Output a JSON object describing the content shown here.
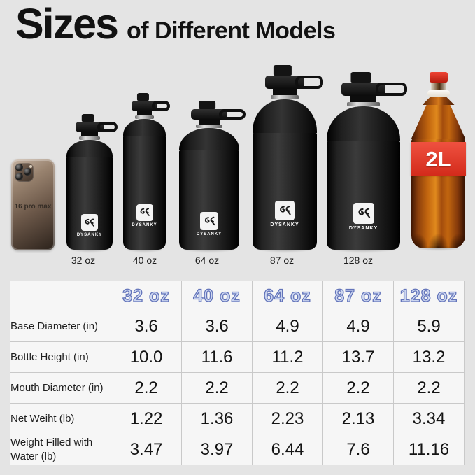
{
  "title": {
    "main": "Sizes",
    "sub": "of Different Models"
  },
  "lineup": {
    "phone": {
      "label": "16 pro max"
    },
    "bottles": [
      {
        "label": "32 oz",
        "brand": "DYSANKY"
      },
      {
        "label": "40 oz",
        "brand": "DYSANKY"
      },
      {
        "label": "64 oz",
        "brand": "DYSANKY"
      },
      {
        "label": "87 oz",
        "brand": "DYSANKY"
      },
      {
        "label": "128 oz",
        "brand": "DYSANKY"
      }
    ],
    "soda": {
      "volume_label": "2L"
    }
  },
  "table": {
    "columns": [
      "32 oz",
      "40 oz",
      "64 oz",
      "87 oz",
      "128 oz"
    ],
    "rows": [
      {
        "label": "Base Diameter (in)",
        "values": [
          "3.6",
          "3.6",
          "4.9",
          "4.9",
          "5.9"
        ]
      },
      {
        "label": "Bottle Height (in)",
        "values": [
          "10.0",
          "11.6",
          "11.2",
          "13.7",
          "13.2"
        ]
      },
      {
        "label": "Mouth Diameter (in)",
        "values": [
          "2.2",
          "2.2",
          "2.2",
          "2.2",
          "2.2"
        ]
      },
      {
        "label": "Net Weiht (lb)",
        "values": [
          "1.22",
          "1.36",
          "2.23",
          "2.13",
          "3.34"
        ]
      },
      {
        "label": "Weight Filled with Water (lb)",
        "values": [
          "3.47",
          "3.97",
          "6.44",
          "7.6",
          "11.16"
        ]
      }
    ]
  },
  "colors": {
    "background": "#e4e4e4",
    "header_text_fill": "#ccd6f0",
    "header_text_outline": "#6374ba",
    "table_border": "#c9c9c9",
    "cell_background": "#f6f6f6",
    "soda_label_red": "#d32b1b",
    "bottle_black": "#161616"
  }
}
